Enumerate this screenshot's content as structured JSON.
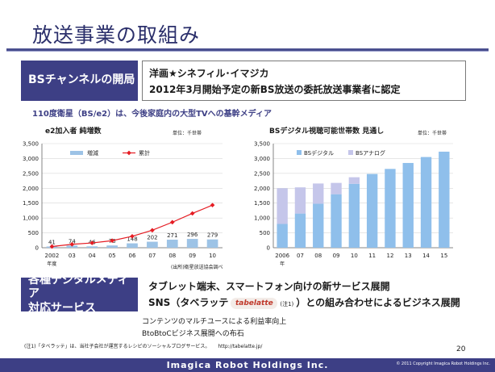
{
  "slide": {
    "title": "放送事業の取組み",
    "page_number": "20"
  },
  "bs_section": {
    "label": "BSチャンネルの開局",
    "line1": "洋画★シネフィル･イマジカ",
    "line2": "2012年3月開始予定の新BS放送の委託放送事業者に認定"
  },
  "satellite_line": "110度衛星（BS/e2）は、今後家庭内の大型TVへの基幹メディア",
  "digital_section": {
    "label_line1": "各種デジタルメディア",
    "label_line2": "対応サービス",
    "line1": "タブレット端末、スマートフォン向けの新サービス展開",
    "line2_prefix": "SNS（タベラッテ",
    "logo_text": "tabelatte",
    "line2_note": "(注1)",
    "line2_suffix": "）との組み合わせによるビジネス展開",
    "after1": "コンテンツのマルチユースによる利益率向上",
    "after2": "BtoBtoCビジネス展開への布石"
  },
  "footnote": {
    "text": "(注1)「タベラッテ」は、当社子会社が運営するレシピのソーシャルブログサービス。",
    "url": "http://tabelatte.jp/"
  },
  "footer": {
    "company": "Imagica Robot Holdings Inc.",
    "copyright": "© 2011 Copyright Imagica Robot Holdings Inc."
  },
  "colors": {
    "brand": "#3d3f85",
    "bar_blue": "#9dc3e6",
    "line_red": "#e51c23",
    "bs_analog": "#c5c6ea",
    "bs_digital": "#8fbfeb"
  },
  "chart_data": [
    {
      "type": "bar",
      "title": "e2加入者 純増数",
      "unit": "単位：千世帯",
      "source": "(出所)衛星放送協会調べ",
      "ylim": [
        0,
        3500
      ],
      "yticks": [
        "0",
        "500",
        "1,000",
        "1,500",
        "2,000",
        "2,500",
        "3,000",
        "3,500"
      ],
      "categories": [
        "2002",
        "03",
        "04",
        "05",
        "06",
        "07",
        "08",
        "09",
        "10"
      ],
      "x_suffix_label": "年度",
      "series": [
        {
          "name": "増減",
          "kind": "bar",
          "values": [
            41,
            74,
            46,
            76,
            148,
            202,
            271,
            296,
            279
          ]
        },
        {
          "name": "累計",
          "kind": "line",
          "values": [
            41,
            115,
            161,
            237,
            385,
            587,
            858,
            1154,
            1433
          ]
        }
      ],
      "data_labels": [
        "41",
        "74",
        "46",
        "76",
        "148",
        "202",
        "271",
        "296",
        "279"
      ],
      "legend": "top"
    },
    {
      "type": "bar",
      "title": "BSデジタル視聴可能世帯数 見通し",
      "unit": "単位：千世帯",
      "ylim": [
        0,
        3500
      ],
      "yticks": [
        "0",
        "500",
        "1,000",
        "1,500",
        "2,000",
        "2,500",
        "3,000",
        "3,500"
      ],
      "categories": [
        "2006",
        "07",
        "08",
        "09",
        "10",
        "11",
        "12",
        "13",
        "14",
        "15"
      ],
      "x_suffix_label": "年",
      "stacked": true,
      "series": [
        {
          "name": "BSデジタル",
          "values": [
            800,
            1150,
            1480,
            1800,
            2150,
            2480,
            2650,
            2850,
            3050,
            3230
          ]
        },
        {
          "name": "BSアナログ",
          "values": [
            1200,
            880,
            680,
            380,
            220,
            0,
            0,
            0,
            0,
            0
          ]
        }
      ],
      "legend": "top"
    }
  ]
}
